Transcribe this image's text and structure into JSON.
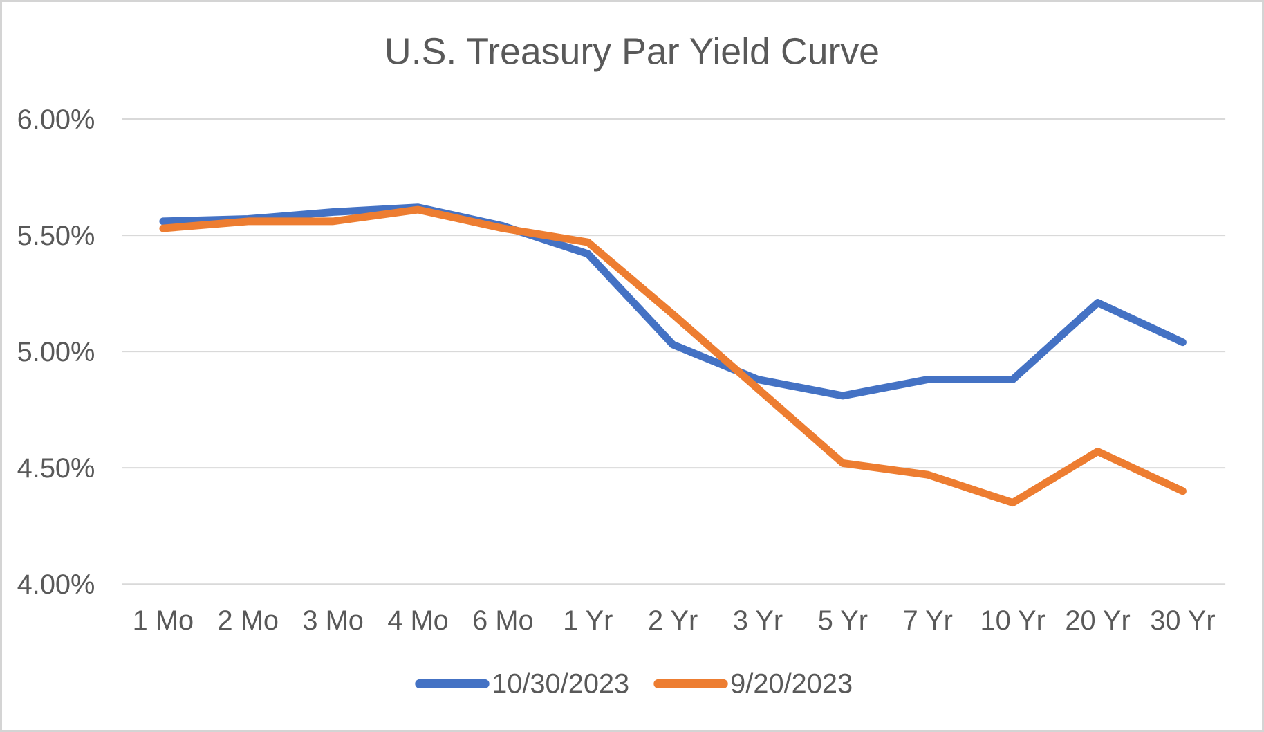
{
  "window": {
    "background_color": "#ffffff",
    "border_color": "#d4d4d4"
  },
  "chart_data": {
    "type": "line",
    "title": "U.S. Treasury Par Yield Curve",
    "categories": [
      "1 Mo",
      "2 Mo",
      "3 Mo",
      "4 Mo",
      "6 Mo",
      "1 Yr",
      "2 Yr",
      "3 Yr",
      "5 Yr",
      "7 Yr",
      "10 Yr",
      "20 Yr",
      "30 Yr"
    ],
    "series": [
      {
        "name": "10/30/2023",
        "color": "#4472C4",
        "values": [
          5.56,
          5.57,
          5.6,
          5.62,
          5.54,
          5.42,
          5.03,
          4.88,
          4.81,
          4.88,
          4.88,
          5.21,
          5.04
        ]
      },
      {
        "name": "9/20/2023",
        "color": "#ED7D31",
        "values": [
          5.53,
          5.56,
          5.56,
          5.61,
          5.53,
          5.47,
          5.16,
          4.84,
          4.52,
          4.47,
          4.35,
          4.57,
          4.4
        ]
      }
    ],
    "xlabel": "",
    "ylabel": "",
    "y_axis": {
      "min": 4.0,
      "max": 6.0,
      "tick_step": 0.5,
      "tick_labels": [
        "6.00%",
        "5.50%",
        "5.00%",
        "4.50%",
        "4.00%"
      ]
    },
    "grid": true,
    "legend_position": "bottom",
    "styles": {
      "text_color": "#595959",
      "gridline_color": "#d9d9d9",
      "line_width": 11
    }
  }
}
